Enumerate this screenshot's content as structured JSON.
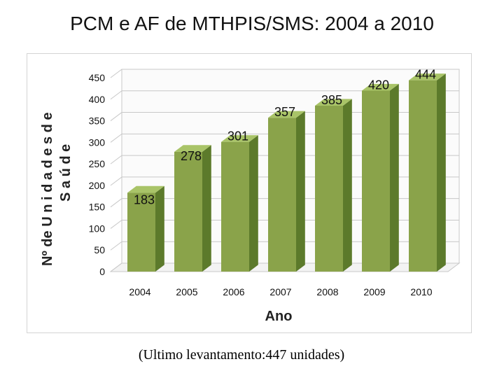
{
  "page": {
    "title": "PCM e AF de MTHPIS/SMS: 2004 a 2010",
    "footnote": "(Ultimo levantamento:447 unidades)"
  },
  "chart_data": {
    "type": "bar",
    "style": "3d-column",
    "categories": [
      "2004",
      "2005",
      "2006",
      "2007",
      "2008",
      "2009",
      "2010"
    ],
    "values": [
      183,
      278,
      301,
      357,
      385,
      420,
      444
    ],
    "data_labels": [
      "183",
      "278",
      "301",
      "357",
      "385",
      "420",
      "444"
    ],
    "xlabel": "Ano",
    "ylabel_lines": [
      "Nº de  U n i d a d e s  d e",
      "S a ú d e"
    ],
    "ylim": [
      0,
      450
    ],
    "yticks": [
      "0",
      "50",
      "100",
      "150",
      "200",
      "250",
      "300",
      "350",
      "400",
      "450"
    ],
    "grid": true,
    "legend": "none",
    "colors": {
      "bar_front": "#8aa34a",
      "bar_top": "#a9c468",
      "bar_side": "#5c7a2b",
      "grid": "#c8c8c8",
      "wall": "#fbfbfb"
    }
  }
}
